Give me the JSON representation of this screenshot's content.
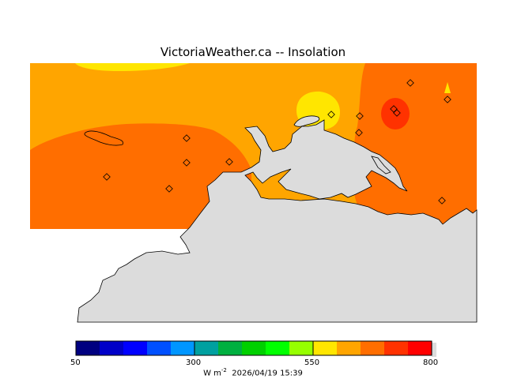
{
  "title": "VictoriaWeather.ca -- Insolation",
  "colorbar": {
    "ticks": [
      "50",
      "300",
      "550",
      "800"
    ],
    "units_base": "W m",
    "units_exp": "-2",
    "timestamp": "2026/04/19 15:39",
    "colors": [
      "#000080",
      "#0000c8",
      "#0000ff",
      "#0050ff",
      "#0096ff",
      "#00a0a0",
      "#00b040",
      "#00d000",
      "#00ff00",
      "#96ff00",
      "#ffe600",
      "#ffa500",
      "#ff6e00",
      "#ff3200",
      "#ff0000"
    ]
  },
  "palette": {
    "land": "#dcdcdc",
    "orange": "#ffa500",
    "dark_orange": "#ff6e00",
    "red_orange": "#ff3200",
    "yellow": "#ffe600"
  }
}
